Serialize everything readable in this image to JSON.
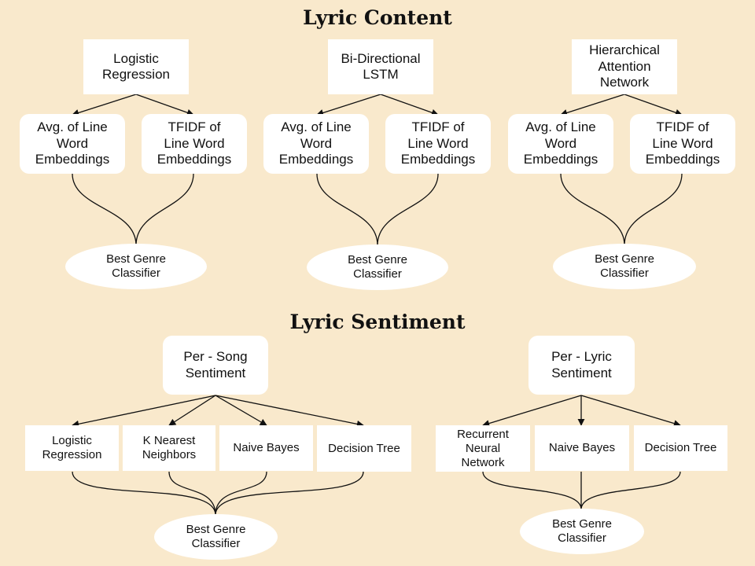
{
  "titles": {
    "lyric_content": "Lyric Content",
    "lyric_sentiment": "Lyric Sentiment"
  },
  "content": {
    "col1": {
      "model": "Logistic\nRegression",
      "feat_avg": "Avg. of Line\nWord\nEmbeddings",
      "feat_tfidf": "TFIDF of\nLine Word\nEmbeddings",
      "result": "Best Genre\nClassifier"
    },
    "col2": {
      "model": "Bi-Directional\nLSTM",
      "feat_avg": "Avg. of Line\nWord\nEmbeddings",
      "feat_tfidf": "TFIDF of\nLine Word\nEmbeddings",
      "result": "Best Genre\nClassifier"
    },
    "col3": {
      "model": "Hierarchical\nAttention\nNetwork",
      "feat_avg": "Avg. of Line\nWord\nEmbeddings",
      "feat_tfidf": "TFIDF of\nLine Word\nEmbeddings",
      "result": "Best Genre\nClassifier"
    }
  },
  "sentiment": {
    "song": {
      "root": "Per - Song\nSentiment",
      "models": [
        "Logistic\nRegression",
        "K Nearest\nNeighbors",
        "Naive Bayes",
        "Decision Tree"
      ],
      "result": "Best Genre\nClassifier"
    },
    "lyric": {
      "root": "Per - Lyric\nSentiment",
      "models": [
        "Recurrent\nNeural\nNetwork",
        "Naive Bayes",
        "Decision Tree"
      ],
      "result": "Best Genre\nClassifier"
    }
  }
}
